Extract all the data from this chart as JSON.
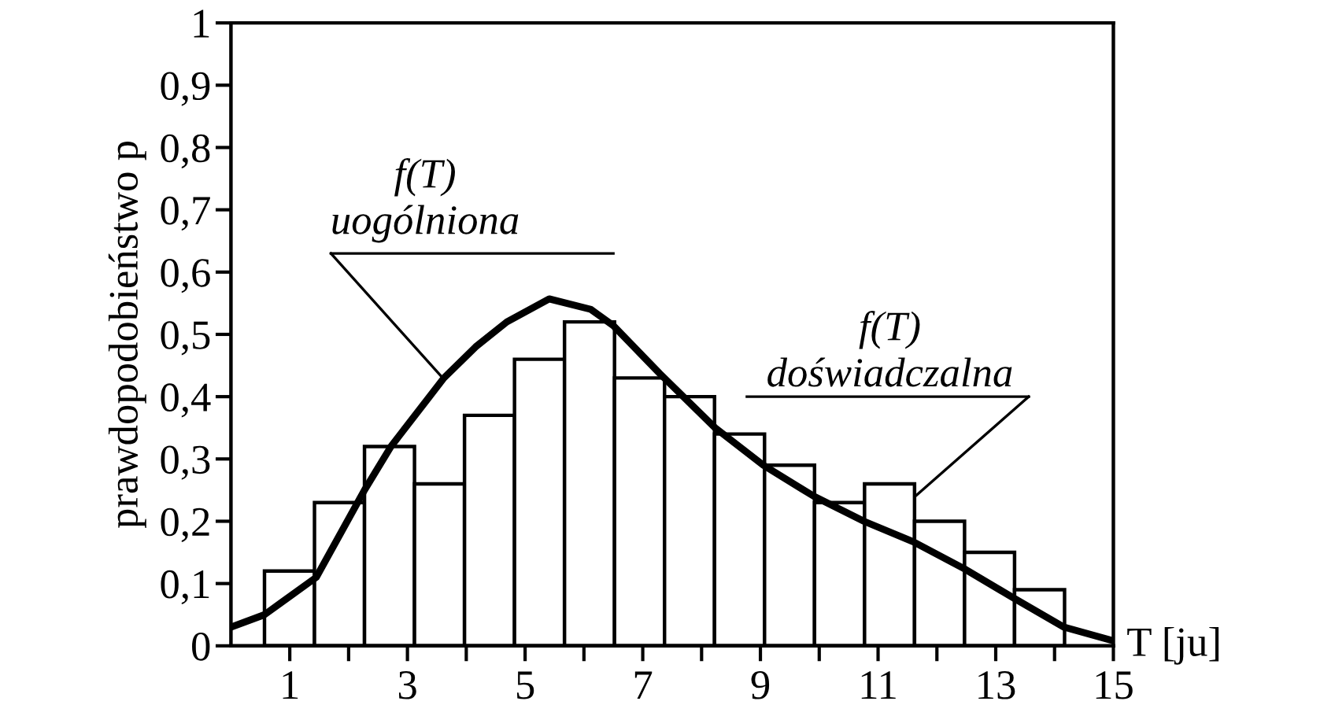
{
  "chart_data": {
    "type": "histogram",
    "xlabel": "T [ju]",
    "ylabel": "prawdopodobieństwo p",
    "bins": [
      0.57,
      1.42,
      2.27,
      3.12,
      3.97,
      4.82,
      5.67,
      6.52,
      7.37,
      8.22,
      9.07,
      9.92,
      10.77,
      11.62,
      12.47,
      13.32,
      14.17
    ],
    "values": [
      0.12,
      0.23,
      0.32,
      0.26,
      0.37,
      0.46,
      0.52,
      0.43,
      0.4,
      0.34,
      0.29,
      0.23,
      0.26,
      0.2,
      0.15,
      0.09
    ],
    "color": "#ffffff",
    "series": [
      {
        "type": "line",
        "color": "#000000",
        "x": [
          0,
          0.57,
          1.45,
          2.27,
          2.72,
          3.62,
          4.16,
          4.69,
          5.41,
          6.12,
          6.5,
          7.29,
          8.23,
          9.05,
          9.91,
          10.76,
          11.6,
          12.46,
          13.3,
          14.16,
          15
        ],
        "values": [
          0.03,
          0.05,
          0.11,
          0.25,
          0.32,
          0.43,
          0.48,
          0.52,
          0.557,
          0.54,
          0.514,
          0.437,
          0.35,
          0.29,
          0.24,
          0.2,
          0.167,
          0.124,
          0.077,
          0.03,
          0.008
        ]
      }
    ],
    "annotations": [
      {
        "text": "f(T)\nuogólniona",
        "x": 3.6,
        "y": 0.43
      },
      {
        "text": "f(T)\ndoświadczalna",
        "x": 11.63,
        "y": 0.24
      }
    ],
    "xlim": [
      0,
      15
    ],
    "ylim": [
      0,
      1
    ],
    "xticks": [
      1,
      {
        "value": 2,
        "label": null
      },
      3,
      {
        "value": 4,
        "label": null
      },
      5,
      {
        "value": 6,
        "label": null
      },
      7,
      {
        "value": 8,
        "label": null
      },
      9,
      {
        "value": 10,
        "label": null
      },
      11,
      {
        "value": 12,
        "label": null
      },
      13,
      {
        "value": 14,
        "label": null
      },
      15
    ],
    "yticks": [
      0,
      {
        "value": 0.1,
        "label": "0,1"
      },
      {
        "value": 0.2,
        "label": "0,2"
      },
      {
        "value": 0.3,
        "label": "0,3"
      },
      {
        "value": 0.4,
        "label": "0,4"
      },
      {
        "value": 0.5,
        "label": "0,5"
      },
      {
        "value": 0.6,
        "label": "0,6"
      },
      {
        "value": 0.7,
        "label": "0,7"
      },
      {
        "value": 0.8,
        "label": "0,8"
      },
      {
        "value": 0.9,
        "label": "0,9"
      },
      1
    ],
    "grid": false,
    "legend": false
  }
}
